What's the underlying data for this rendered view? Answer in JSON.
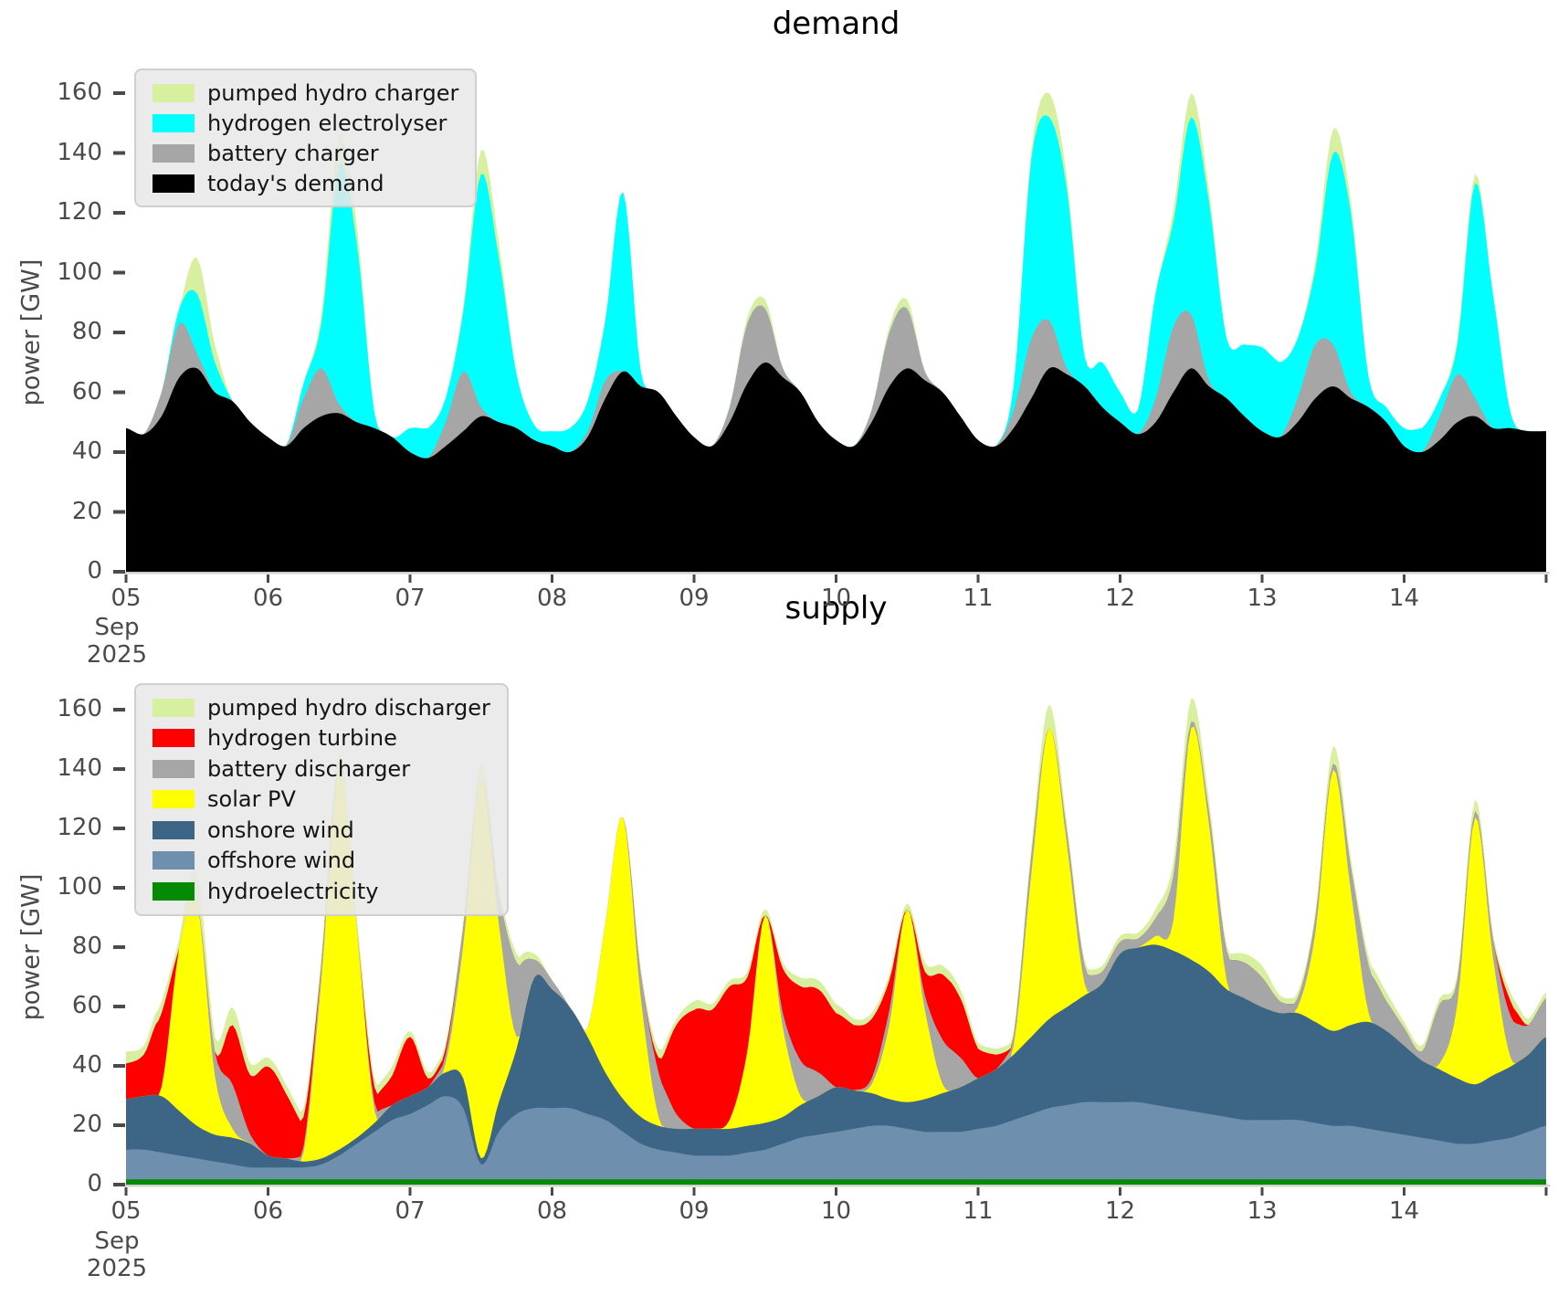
{
  "figure": {
    "background": "#ffffff",
    "tick_color": "#4a4a4a",
    "spine_color": "#cfcfcf",
    "legend_background": "#e8e8e8"
  },
  "chart_data": [
    {
      "type": "area",
      "stacked": true,
      "title": "demand",
      "xlabel": "",
      "ylabel": "power [GW]",
      "x_start_label": "05",
      "x_axis_caption_line1": "Sep",
      "x_axis_caption_line2": "2025",
      "x_tick_labels": [
        "05",
        "06",
        "07",
        "08",
        "09",
        "10",
        "11",
        "12",
        "13",
        "14"
      ],
      "x_hours_step": 3,
      "x_total_hours": 240,
      "y_ticks": [
        0,
        20,
        40,
        60,
        80,
        100,
        120,
        140,
        160
      ],
      "ylim": [
        0,
        170
      ],
      "grid": false,
      "legend_position": "upper left",
      "series": [
        {
          "name": "today's demand",
          "color": "#000000",
          "values": [
            48,
            46,
            52,
            65,
            68,
            60,
            57,
            50,
            45,
            42,
            48,
            52,
            53,
            50,
            48,
            45,
            40,
            38,
            42,
            47,
            52,
            50,
            48,
            44,
            42,
            40,
            45,
            58,
            67,
            62,
            60,
            52,
            45,
            42,
            50,
            63,
            70,
            65,
            60,
            50,
            44,
            42,
            50,
            62,
            68,
            64,
            60,
            52,
            44,
            42,
            48,
            58,
            68,
            66,
            62,
            55,
            50,
            46,
            50,
            60,
            68,
            62,
            58,
            52,
            47,
            45,
            50,
            58,
            62,
            58,
            55,
            50,
            42,
            40,
            44,
            50,
            52,
            48,
            48,
            47,
            47
          ]
        },
        {
          "name": "battery charger",
          "color": "#a6a6a6",
          "values": [
            0,
            0,
            8,
            18,
            5,
            0,
            0,
            0,
            0,
            0,
            10,
            16,
            3,
            0,
            0,
            0,
            0,
            0,
            8,
            20,
            3,
            0,
            0,
            0,
            0,
            0,
            2,
            6,
            0,
            0,
            0,
            0,
            0,
            0,
            5,
            20,
            18,
            3,
            0,
            0,
            0,
            0,
            4,
            18,
            20,
            3,
            0,
            0,
            0,
            0,
            6,
            20,
            16,
            2,
            0,
            0,
            0,
            0,
            8,
            22,
            18,
            2,
            0,
            0,
            0,
            0,
            8,
            18,
            14,
            2,
            0,
            0,
            0,
            0,
            8,
            16,
            6,
            0,
            0,
            0,
            0
          ]
        },
        {
          "name": "hydrogen electrolyser",
          "color": "#00ffff",
          "values": [
            0,
            0,
            0,
            5,
            20,
            10,
            0,
            0,
            0,
            0,
            5,
            15,
            80,
            60,
            5,
            0,
            8,
            10,
            8,
            20,
            78,
            55,
            18,
            5,
            5,
            8,
            10,
            20,
            60,
            5,
            0,
            0,
            0,
            0,
            0,
            0,
            0,
            0,
            0,
            0,
            0,
            0,
            0,
            0,
            0,
            0,
            0,
            0,
            0,
            0,
            8,
            60,
            68,
            60,
            10,
            15,
            10,
            8,
            35,
            35,
            66,
            60,
            20,
            24,
            28,
            25,
            20,
            25,
            64,
            60,
            10,
            5,
            6,
            8,
            6,
            10,
            72,
            45,
            5,
            0,
            0
          ]
        },
        {
          "name": "pumped hydro charger",
          "color": "#d7f0a0",
          "values": [
            0,
            0,
            0,
            0,
            12,
            6,
            0,
            0,
            0,
            0,
            0,
            3,
            10,
            6,
            0,
            0,
            0,
            0,
            0,
            2,
            8,
            5,
            0,
            0,
            0,
            0,
            0,
            0,
            0,
            0,
            0,
            0,
            0,
            0,
            0,
            2,
            3,
            0,
            0,
            0,
            0,
            0,
            0,
            2,
            3,
            0,
            0,
            0,
            0,
            0,
            0,
            3,
            8,
            4,
            0,
            0,
            0,
            0,
            0,
            4,
            8,
            4,
            0,
            0,
            0,
            0,
            0,
            3,
            8,
            4,
            0,
            0,
            0,
            0,
            0,
            2,
            3,
            0,
            0,
            0,
            0
          ]
        }
      ]
    },
    {
      "type": "area",
      "stacked": true,
      "title": "supply",
      "xlabel": "",
      "ylabel": "power [GW]",
      "x_start_label": "05",
      "x_axis_caption_line1": "Sep",
      "x_axis_caption_line2": "2025",
      "x_tick_labels": [
        "05",
        "06",
        "07",
        "08",
        "09",
        "10",
        "11",
        "12",
        "13",
        "14"
      ],
      "x_hours_step": 3,
      "x_total_hours": 240,
      "y_ticks": [
        0,
        20,
        40,
        60,
        80,
        100,
        120,
        140,
        160
      ],
      "ylim": [
        0,
        170
      ],
      "grid": false,
      "legend_position": "upper left",
      "series": [
        {
          "name": "hydroelectricity",
          "color": "#048a04",
          "values": [
            1.8,
            1.8,
            1.8,
            1.8,
            1.8,
            1.8,
            1.8,
            1.8,
            1.8,
            1.8,
            1.8,
            1.8,
            1.8,
            1.8,
            1.8,
            1.8,
            1.8,
            1.8,
            1.8,
            1.8,
            1.8,
            1.8,
            1.8,
            1.8,
            1.8,
            1.8,
            1.8,
            1.8,
            1.8,
            1.8,
            1.8,
            1.8,
            1.8,
            1.8,
            1.8,
            1.8,
            1.8,
            1.8,
            1.8,
            1.8,
            1.8,
            1.8,
            1.8,
            1.8,
            1.8,
            1.8,
            1.8,
            1.8,
            1.8,
            1.8,
            1.8,
            1.8,
            1.8,
            1.8,
            1.8,
            1.8,
            1.8,
            1.8,
            1.8,
            1.8,
            1.8,
            1.8,
            1.8,
            1.8,
            1.8,
            1.8,
            1.8,
            1.8,
            1.8,
            1.8,
            1.8,
            1.8,
            1.8,
            1.8,
            1.8,
            1.8,
            1.8,
            1.8,
            1.8,
            1.8,
            1.8
          ]
        },
        {
          "name": "offshore wind",
          "color": "#6e8fae",
          "values": [
            10,
            10,
            9,
            8,
            7,
            6,
            5,
            4,
            4,
            4,
            4,
            5,
            8,
            12,
            16,
            20,
            22,
            25,
            28,
            24,
            5,
            16,
            22,
            24,
            24,
            24,
            22,
            20,
            16,
            12,
            10,
            9,
            8,
            8,
            8,
            9,
            10,
            12,
            14,
            15,
            16,
            17,
            18,
            18,
            17,
            16,
            16,
            16,
            17,
            18,
            20,
            22,
            24,
            25,
            26,
            26,
            26,
            26,
            25,
            24,
            23,
            22,
            21,
            20,
            20,
            20,
            20,
            19,
            18,
            18,
            17,
            16,
            15,
            14,
            13,
            12,
            12,
            13,
            14,
            16,
            18
          ]
        },
        {
          "name": "onshore wind",
          "color": "#3d6585",
          "values": [
            17,
            18,
            19,
            15,
            11,
            9,
            9,
            8,
            4,
            3,
            2,
            2,
            2,
            2,
            3,
            5,
            6,
            6,
            8,
            10,
            2,
            10,
            22,
            44,
            40,
            34,
            26,
            16,
            11,
            9,
            8,
            8,
            9,
            9,
            9,
            9,
            9,
            9,
            11,
            13,
            15,
            13,
            11,
            9,
            9,
            11,
            13,
            15,
            17,
            19,
            22,
            26,
            30,
            33,
            36,
            40,
            50,
            52,
            54,
            53,
            51,
            48,
            43,
            41,
            38,
            36,
            36,
            34,
            32,
            34,
            36,
            34,
            30,
            26,
            24,
            22,
            20,
            22,
            24,
            26,
            30
          ]
        },
        {
          "name": "solar PV",
          "color": "#ffff00",
          "values": [
            0,
            0,
            3,
            55,
            75,
            20,
            3,
            0,
            0,
            0,
            3,
            60,
            128,
            70,
            4,
            0,
            0,
            0,
            3,
            45,
            128,
            60,
            4,
            0,
            0,
            0,
            3,
            50,
            95,
            40,
            3,
            0,
            0,
            0,
            3,
            25,
            70,
            30,
            3,
            0,
            0,
            0,
            3,
            25,
            65,
            30,
            3,
            0,
            0,
            0,
            3,
            55,
            98,
            55,
            4,
            0,
            0,
            0,
            3,
            10,
            78,
            50,
            3,
            0,
            0,
            0,
            2,
            30,
            88,
            45,
            3,
            0,
            0,
            0,
            2,
            25,
            90,
            40,
            3,
            0,
            0
          ]
        },
        {
          "name": "battery discharger",
          "color": "#a6a6a6",
          "values": [
            0,
            0,
            0,
            0,
            0,
            8,
            15,
            3,
            0,
            0,
            2,
            5,
            0,
            0,
            3,
            0,
            0,
            0,
            3,
            6,
            0,
            10,
            25,
            6,
            3,
            0,
            0,
            0,
            0,
            8,
            15,
            5,
            0,
            0,
            0,
            0,
            0,
            5,
            12,
            8,
            0,
            0,
            2,
            5,
            0,
            5,
            15,
            10,
            0,
            0,
            3,
            6,
            0,
            4,
            6,
            4,
            4,
            3,
            6,
            15,
            2,
            4,
            10,
            12,
            10,
            4,
            3,
            5,
            2,
            8,
            16,
            10,
            6,
            3,
            20,
            8,
            2,
            6,
            14,
            10,
            13
          ]
        },
        {
          "name": "hydrogen turbine",
          "color": "#ff0000",
          "values": [
            12,
            14,
            25,
            0,
            0,
            0,
            20,
            20,
            30,
            22,
            10,
            0,
            0,
            0,
            5,
            10,
            20,
            3,
            2,
            0,
            0,
            0,
            0,
            0,
            0,
            0,
            0,
            0,
            0,
            0,
            5,
            30,
            40,
            40,
            45,
            25,
            0,
            15,
            25,
            28,
            25,
            22,
            20,
            10,
            0,
            8,
            22,
            20,
            10,
            5,
            0,
            0,
            0,
            0,
            0,
            0,
            0,
            0,
            0,
            0,
            0,
            0,
            0,
            0,
            0,
            0,
            0,
            0,
            0,
            0,
            0,
            0,
            0,
            0,
            0,
            0,
            0,
            0,
            5,
            0,
            0
          ]
        },
        {
          "name": "pumped hydro discharger",
          "color": "#d7f0a0",
          "values": [
            4,
            3,
            4,
            3,
            10,
            5,
            6,
            4,
            3,
            3,
            3,
            3,
            6,
            4,
            3,
            3,
            2,
            2,
            2,
            2,
            6,
            3,
            3,
            2,
            0,
            0,
            0,
            0,
            0,
            2,
            3,
            2,
            3,
            2,
            2,
            2,
            2,
            2,
            3,
            3,
            3,
            2,
            2,
            2,
            2,
            3,
            3,
            3,
            2,
            2,
            2,
            3,
            8,
            3,
            2,
            2,
            2,
            2,
            3,
            5,
            8,
            4,
            2,
            3,
            4,
            2,
            2,
            2,
            6,
            3,
            3,
            3,
            2,
            2,
            2,
            2,
            4,
            2,
            3,
            2,
            2
          ]
        }
      ]
    }
  ]
}
